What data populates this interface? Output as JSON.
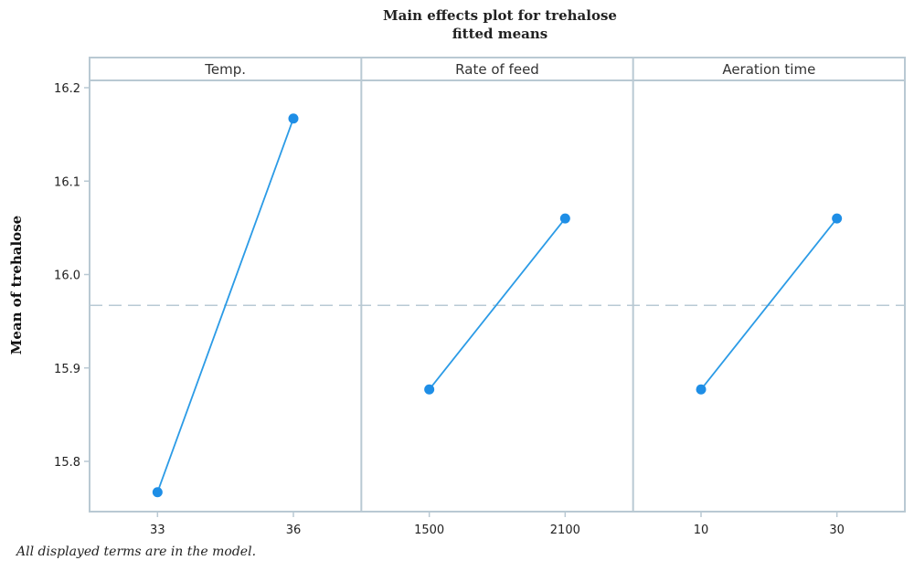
{
  "chart_data": {
    "type": "line",
    "title": "Main effects plot for trehalose",
    "subtitle": "fitted means",
    "ylabel": "Mean of trehalose",
    "ylim": [
      15.74,
      16.21
    ],
    "yticks": [
      "15.8",
      "15.9",
      "16.0",
      "16.1",
      "16.2"
    ],
    "reference_line": 15.967,
    "colors": {
      "line": "#2b9be6",
      "marker": "#1e8ee6",
      "reference": "#b8cad4",
      "frame": "#b9c9d3"
    },
    "panels": [
      {
        "label": "Temp.",
        "levels": [
          "33",
          "36"
        ],
        "values": [
          15.767,
          16.167
        ]
      },
      {
        "label": "Rate of feed",
        "levels": [
          "1500",
          "2100"
        ],
        "values": [
          15.877,
          16.06
        ]
      },
      {
        "label": "Aeration time",
        "levels": [
          "10",
          "30"
        ],
        "values": [
          15.877,
          16.06
        ]
      }
    ]
  },
  "footnote": "All displayed terms are in the model."
}
